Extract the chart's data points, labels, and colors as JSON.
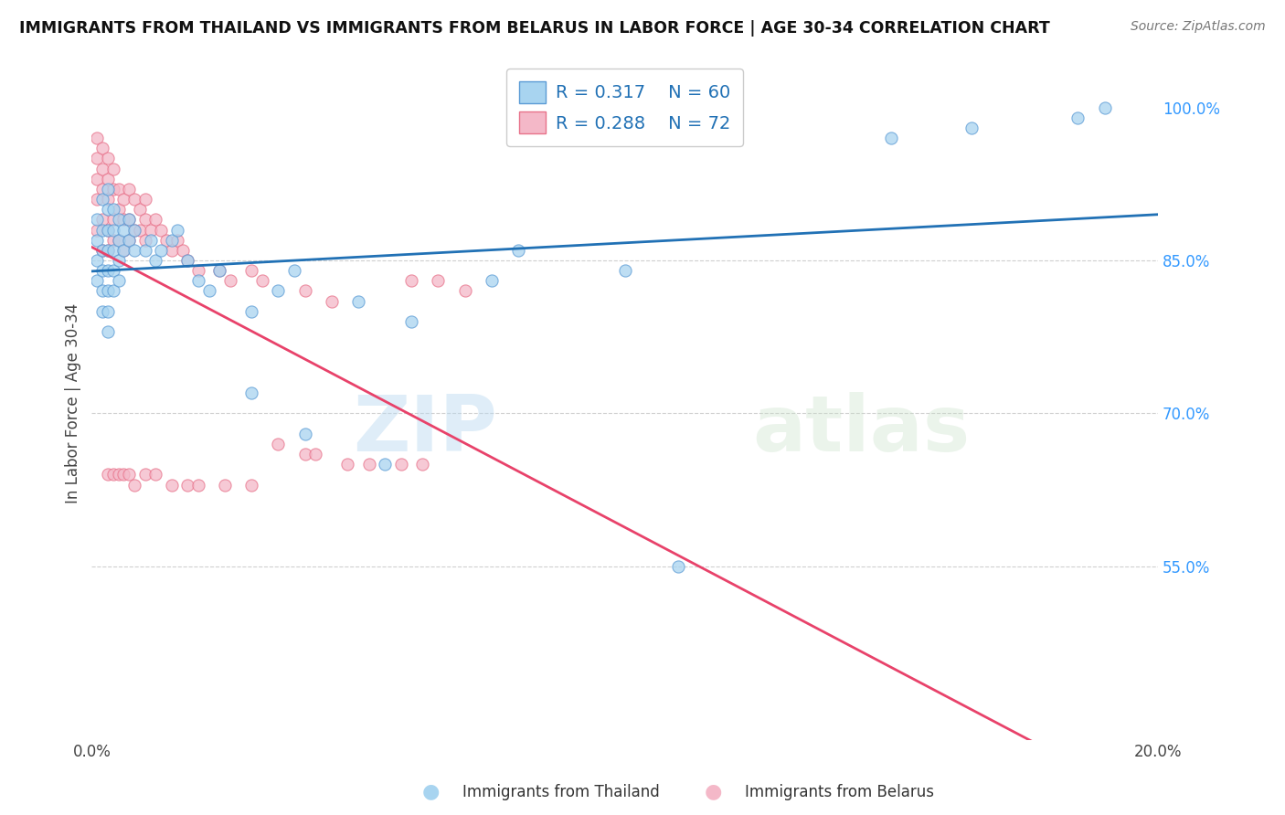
{
  "title": "IMMIGRANTS FROM THAILAND VS IMMIGRANTS FROM BELARUS IN LABOR FORCE | AGE 30-34 CORRELATION CHART",
  "source": "Source: ZipAtlas.com",
  "ylabel": "In Labor Force | Age 30-34",
  "xlim": [
    0.0,
    0.2
  ],
  "ylim": [
    0.38,
    1.04
  ],
  "right_yticks": [
    0.55,
    0.7,
    0.85,
    1.0
  ],
  "right_yticklabels": [
    "55.0%",
    "70.0%",
    "85.0%",
    "100.0%"
  ],
  "watermark": "ZIPatlas",
  "thailand_color": "#a8d4f0",
  "thailand_edge": "#5b9bd5",
  "belarus_color": "#f4b8c8",
  "belarus_edge": "#e8728a",
  "trend_thailand_color": "#2171b5",
  "trend_belarus_color": "#e8426a",
  "legend_label_thailand": "Immigrants from Thailand",
  "legend_label_belarus": "Immigrants from Belarus",
  "background_color": "#ffffff",
  "grid_color": "#bbbbbb",
  "thailand_x": [
    0.001,
    0.001,
    0.001,
    0.001,
    0.002,
    0.002,
    0.002,
    0.002,
    0.002,
    0.002,
    0.003,
    0.003,
    0.003,
    0.003,
    0.003,
    0.003,
    0.003,
    0.003,
    0.004,
    0.004,
    0.004,
    0.004,
    0.004,
    0.005,
    0.005,
    0.005,
    0.005,
    0.006,
    0.006,
    0.007,
    0.007,
    0.008,
    0.008,
    0.01,
    0.011,
    0.012,
    0.013,
    0.015,
    0.016,
    0.018,
    0.02,
    0.022,
    0.024,
    0.03,
    0.035,
    0.038,
    0.05,
    0.06,
    0.075,
    0.08,
    0.1,
    0.11,
    0.15,
    0.165,
    0.185,
    0.19,
    0.03,
    0.04,
    0.055
  ],
  "thailand_y": [
    0.89,
    0.87,
    0.85,
    0.83,
    0.91,
    0.88,
    0.86,
    0.84,
    0.82,
    0.8,
    0.92,
    0.9,
    0.88,
    0.86,
    0.84,
    0.82,
    0.8,
    0.78,
    0.9,
    0.88,
    0.86,
    0.84,
    0.82,
    0.89,
    0.87,
    0.85,
    0.83,
    0.88,
    0.86,
    0.89,
    0.87,
    0.88,
    0.86,
    0.86,
    0.87,
    0.85,
    0.86,
    0.87,
    0.88,
    0.85,
    0.83,
    0.82,
    0.84,
    0.8,
    0.82,
    0.84,
    0.81,
    0.79,
    0.83,
    0.86,
    0.84,
    0.55,
    0.97,
    0.98,
    0.99,
    1.0,
    0.72,
    0.68,
    0.65
  ],
  "belarus_x": [
    0.001,
    0.001,
    0.001,
    0.001,
    0.001,
    0.002,
    0.002,
    0.002,
    0.002,
    0.002,
    0.003,
    0.003,
    0.003,
    0.003,
    0.003,
    0.004,
    0.004,
    0.004,
    0.004,
    0.005,
    0.005,
    0.005,
    0.006,
    0.006,
    0.006,
    0.007,
    0.007,
    0.007,
    0.008,
    0.008,
    0.009,
    0.009,
    0.01,
    0.01,
    0.01,
    0.011,
    0.012,
    0.013,
    0.014,
    0.015,
    0.016,
    0.017,
    0.018,
    0.02,
    0.024,
    0.026,
    0.03,
    0.032,
    0.04,
    0.045,
    0.06,
    0.065,
    0.07,
    0.003,
    0.004,
    0.005,
    0.006,
    0.007,
    0.008,
    0.01,
    0.012,
    0.015,
    0.018,
    0.02,
    0.025,
    0.03,
    0.035,
    0.04,
    0.042,
    0.048,
    0.052,
    0.058,
    0.062
  ],
  "belarus_y": [
    0.97,
    0.95,
    0.93,
    0.91,
    0.88,
    0.96,
    0.94,
    0.92,
    0.89,
    0.86,
    0.95,
    0.93,
    0.91,
    0.88,
    0.86,
    0.94,
    0.92,
    0.89,
    0.87,
    0.92,
    0.9,
    0.87,
    0.91,
    0.89,
    0.86,
    0.92,
    0.89,
    0.87,
    0.91,
    0.88,
    0.9,
    0.88,
    0.91,
    0.89,
    0.87,
    0.88,
    0.89,
    0.88,
    0.87,
    0.86,
    0.87,
    0.86,
    0.85,
    0.84,
    0.84,
    0.83,
    0.84,
    0.83,
    0.82,
    0.81,
    0.83,
    0.83,
    0.82,
    0.64,
    0.64,
    0.64,
    0.64,
    0.64,
    0.63,
    0.64,
    0.64,
    0.63,
    0.63,
    0.63,
    0.63,
    0.63,
    0.67,
    0.66,
    0.66,
    0.65,
    0.65,
    0.65,
    0.65
  ]
}
